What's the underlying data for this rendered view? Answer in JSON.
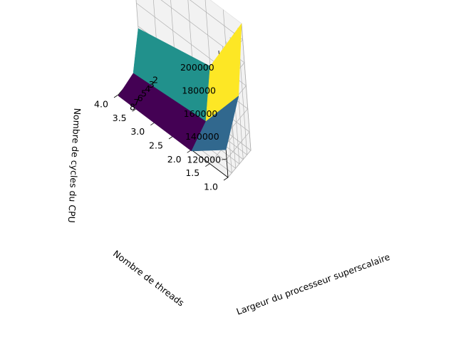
{
  "chart_data": {
    "type": "surface3d",
    "title": "",
    "x_axis": {
      "label": "Largeur du processeur superscalaire",
      "ticks": [
        "2",
        "3",
        "4",
        "5",
        "6",
        "7",
        "8"
      ],
      "range": [
        2,
        8
      ]
    },
    "y_axis": {
      "label": "Nombre de threads",
      "ticks": [
        "1.0",
        "1.5",
        "2.0",
        "2.5",
        "3.0",
        "3.5",
        "4.0"
      ],
      "range": [
        1,
        4
      ]
    },
    "z_axis": {
      "label": "Nombre de cycles du CPU",
      "ticks": [
        "120000",
        "140000",
        "160000",
        "180000",
        "200000"
      ],
      "range": [
        104000,
        214000
      ]
    },
    "grid": true,
    "colormap": "viridis",
    "surface": {
      "x": [
        2,
        4,
        8
      ],
      "y": [
        1,
        2,
        4
      ],
      "z": [
        [
          214000,
          159000,
          128000
        ],
        [
          153000,
          113000,
          103000
        ],
        [
          138000,
          107000,
          103000
        ]
      ],
      "face_colors": [
        "#fde725",
        "#31688e",
        "#21918c",
        "#440154"
      ]
    },
    "colors": {
      "pane": "#f2f2f2",
      "pane_edge": "#e6e6e6",
      "grid": "#b0b0b0",
      "axis": "#000000"
    }
  }
}
